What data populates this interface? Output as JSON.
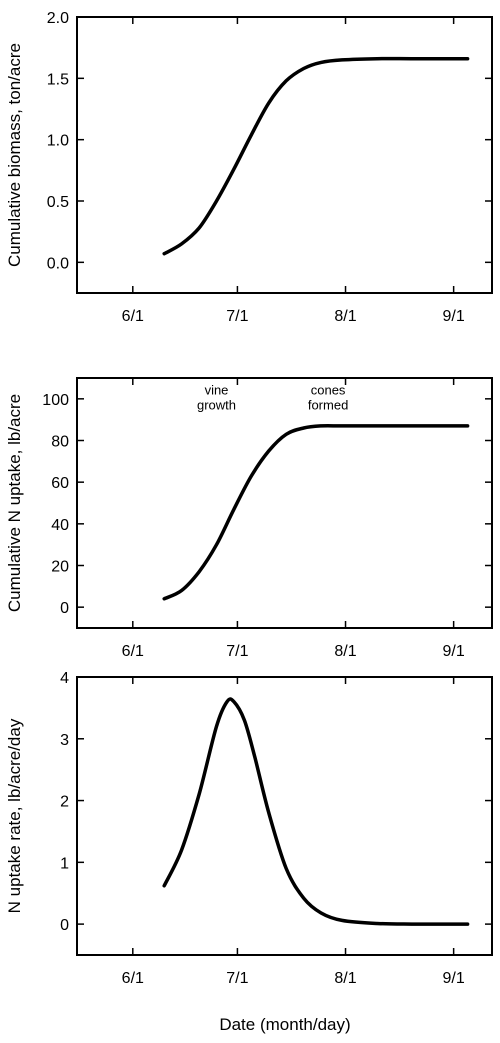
{
  "chart_data": [
    {
      "type": "line",
      "title": "",
      "xlabel": "",
      "ylabel": "Cumulative biomass, ton/acre",
      "x_ticks": [
        "6/1",
        "7/1",
        "8/1",
        "9/1"
      ],
      "y_ticks": [
        "0.0",
        "0.5",
        "1.0",
        "1.5",
        "2.0"
      ],
      "ylim": [
        -0.25,
        2.0
      ],
      "xlim": [
        "5/16",
        "9/12"
      ],
      "grid": false,
      "series": [
        {
          "x": [
            "6/10",
            "6/15",
            "6/20",
            "6/25",
            "6/30",
            "7/5",
            "7/10",
            "7/15",
            "7/20",
            "7/25",
            "7/31",
            "8/10",
            "8/20",
            "8/31",
            "9/5"
          ],
          "y": [
            0.07,
            0.15,
            0.28,
            0.5,
            0.76,
            1.04,
            1.3,
            1.48,
            1.58,
            1.63,
            1.65,
            1.66,
            1.66,
            1.66,
            1.66
          ]
        }
      ]
    },
    {
      "type": "line",
      "title": "",
      "xlabel": "",
      "ylabel": "Cumulative N uptake, lb/acre",
      "x_ticks": [
        "6/1",
        "7/1",
        "8/1",
        "9/1"
      ],
      "y_ticks": [
        "0",
        "20",
        "40",
        "60",
        "80",
        "100"
      ],
      "ylim": [
        -10,
        110
      ],
      "xlim": [
        "5/16",
        "9/12"
      ],
      "grid": false,
      "annotations": [
        {
          "text": [
            "vine",
            "growth"
          ],
          "x": "6/25",
          "y": 102
        },
        {
          "text": [
            "cones",
            "formed"
          ],
          "x": "7/27",
          "y": 102
        }
      ],
      "series": [
        {
          "x": [
            "6/10",
            "6/15",
            "6/20",
            "6/25",
            "6/30",
            "7/5",
            "7/10",
            "7/15",
            "7/20",
            "7/25",
            "7/31",
            "8/10",
            "8/20",
            "8/31",
            "9/5"
          ],
          "y": [
            4,
            8,
            17,
            30,
            47,
            63,
            75,
            83,
            86,
            87,
            87,
            87,
            87,
            87,
            87
          ]
        }
      ]
    },
    {
      "type": "line",
      "title": "",
      "xlabel": "Date (month/day)",
      "ylabel": "N uptake rate, lb/acre/day",
      "x_ticks": [
        "6/1",
        "7/1",
        "8/1",
        "9/1"
      ],
      "y_ticks": [
        "0",
        "1",
        "2",
        "3",
        "4"
      ],
      "ylim": [
        -0.5,
        4.0
      ],
      "xlim": [
        "5/16",
        "9/12"
      ],
      "grid": false,
      "series": [
        {
          "x": [
            "6/10",
            "6/15",
            "6/20",
            "6/25",
            "6/28",
            "6/30",
            "7/3",
            "7/6",
            "7/10",
            "7/15",
            "7/20",
            "7/25",
            "7/31",
            "8/10",
            "8/20",
            "8/31",
            "9/5"
          ],
          "y": [
            0.62,
            1.2,
            2.1,
            3.2,
            3.6,
            3.6,
            3.3,
            2.7,
            1.8,
            0.9,
            0.42,
            0.18,
            0.06,
            0.01,
            0.0,
            0.0,
            0.0
          ]
        }
      ]
    }
  ]
}
